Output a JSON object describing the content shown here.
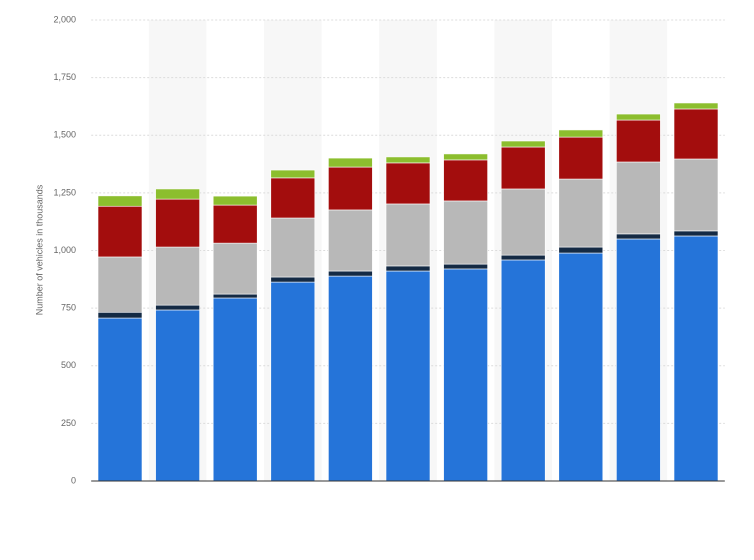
{
  "chart_data": {
    "type": "stacked_bar",
    "y_label": "Number of vehicles in thousands",
    "categories": [
      null,
      null,
      null,
      null,
      null,
      null,
      null,
      null,
      null,
      null,
      null
    ],
    "series": [
      {
        "color": "#2574d9",
        "values": [
          707,
          742,
          794,
          863,
          889,
          911,
          920,
          959,
          989,
          1050,
          1063
        ]
      },
      {
        "color": "#142a44",
        "values": [
          25,
          21,
          17,
          22,
          22,
          22,
          21,
          21,
          26,
          22,
          22
        ]
      },
      {
        "color": "#b8b8b8",
        "values": [
          240,
          252,
          221,
          256,
          265,
          269,
          274,
          287,
          295,
          312,
          312
        ]
      },
      {
        "color": "#a30d0d",
        "values": [
          220,
          208,
          165,
          174,
          186,
          178,
          178,
          182,
          182,
          182,
          217
        ]
      },
      {
        "color": "#8cbe2e",
        "values": [
          45,
          44,
          39,
          34,
          39,
          26,
          26,
          26,
          31,
          26,
          26
        ]
      }
    ],
    "ylim": [
      0,
      2000
    ],
    "yticks": [
      0,
      250,
      500,
      750,
      {
        "value": 1000,
        "label": "1,000"
      },
      {
        "value": 1250,
        "label": "1,250"
      },
      {
        "value": 1500,
        "label": "1,500"
      },
      {
        "value": 1750,
        "label": "1,750"
      },
      {
        "value": 2000,
        "label": "2,000"
      }
    ],
    "grid": true
  }
}
